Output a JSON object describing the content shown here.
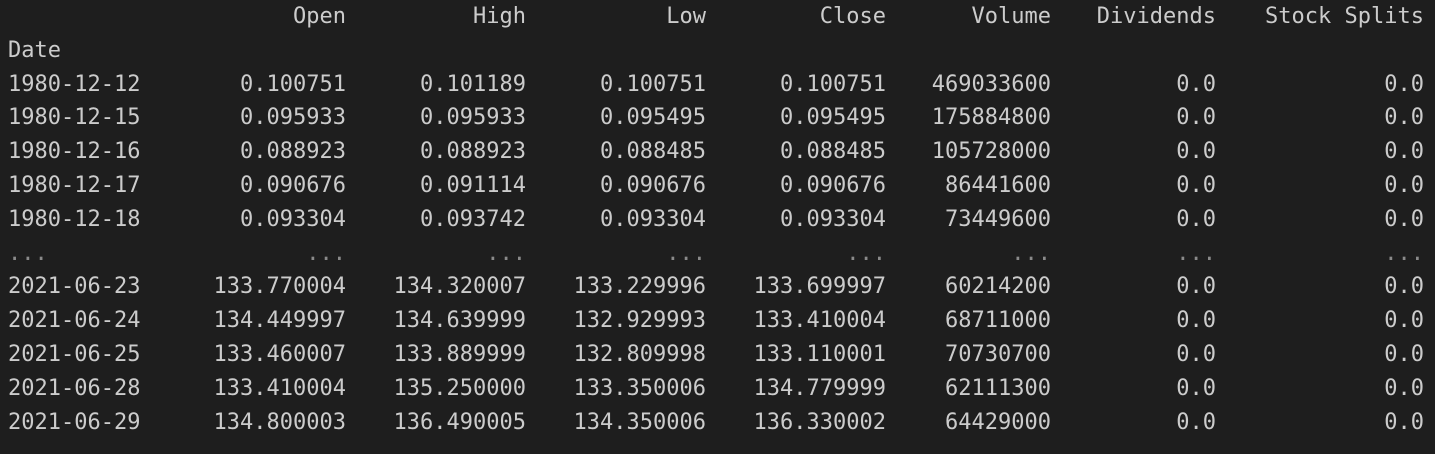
{
  "output": {
    "columns": [
      "Open",
      "High",
      "Low",
      "Close",
      "Volume",
      "Dividends",
      "Stock Splits"
    ],
    "index_name": "Date",
    "rows_head": [
      [
        "1980-12-12",
        "0.100751",
        "0.101189",
        "0.100751",
        "0.100751",
        "469033600",
        "0.0",
        "0.0"
      ],
      [
        "1980-12-15",
        "0.095933",
        "0.095933",
        "0.095495",
        "0.095495",
        "175884800",
        "0.0",
        "0.0"
      ],
      [
        "1980-12-16",
        "0.088923",
        "0.088923",
        "0.088485",
        "0.088485",
        "105728000",
        "0.0",
        "0.0"
      ],
      [
        "1980-12-17",
        "0.090676",
        "0.091114",
        "0.090676",
        "0.090676",
        "86441600",
        "0.0",
        "0.0"
      ],
      [
        "1980-12-18",
        "0.093304",
        "0.093742",
        "0.093304",
        "0.093304",
        "73449600",
        "0.0",
        "0.0"
      ]
    ],
    "ellipsis": "...",
    "rows_tail": [
      [
        "2021-06-23",
        "133.770004",
        "134.320007",
        "133.229996",
        "133.699997",
        "60214200",
        "0.0",
        "0.0"
      ],
      [
        "2021-06-24",
        "134.449997",
        "134.639999",
        "132.929993",
        "133.410004",
        "68711000",
        "0.0",
        "0.0"
      ],
      [
        "2021-06-25",
        "133.460007",
        "133.889999",
        "132.809998",
        "133.110001",
        "70730700",
        "0.0",
        "0.0"
      ],
      [
        "2021-06-28",
        "133.410004",
        "135.250000",
        "133.350006",
        "134.779999",
        "62111300",
        "0.0",
        "0.0"
      ],
      [
        "2021-06-29",
        "134.800003",
        "136.490005",
        "134.350006",
        "136.330002",
        "64429000",
        "0.0",
        "0.0"
      ]
    ]
  },
  "colors": {
    "background": "#1e1e1e",
    "text": "#cccccc",
    "ellipsis": "#8a8a8a"
  }
}
